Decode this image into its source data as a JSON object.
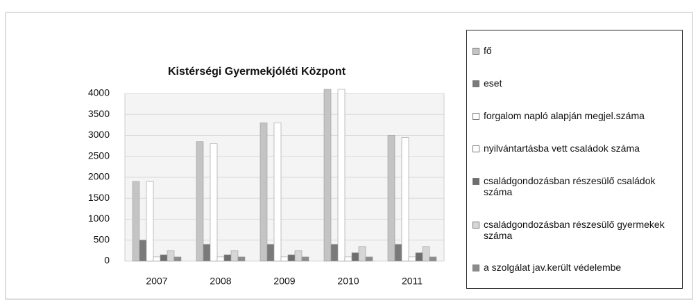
{
  "chart_data": {
    "type": "bar",
    "title": "Kistérségi Gyermekjóléti Központ",
    "categories": [
      "2007",
      "2008",
      "2009",
      "2010",
      "2011"
    ],
    "series": [
      {
        "name": "fő",
        "color": "#c4c4c4",
        "values": [
          1900,
          2850,
          3300,
          4100,
          3000
        ]
      },
      {
        "name": "eset",
        "color": "#7a7a7a",
        "values": [
          500,
          400,
          400,
          400,
          400
        ]
      },
      {
        "name": "forgalom napló alapján megjel.száma",
        "color": "#ffffff",
        "values": [
          1900,
          2800,
          3300,
          4100,
          2950
        ]
      },
      {
        "name": "nyilvántartásba vett családok száma",
        "color": "#ffffff",
        "values": [
          100,
          100,
          100,
          100,
          100
        ]
      },
      {
        "name": "családgondozásban részesülő családok száma",
        "color": "#6e6e6e",
        "values": [
          150,
          150,
          150,
          200,
          200
        ]
      },
      {
        "name": "családgondozásban részesülő gyermekek száma",
        "color": "#d6d6d6",
        "values": [
          250,
          250,
          250,
          350,
          350
        ]
      },
      {
        "name": "a szolgálat jav.került védelembe",
        "color": "#8c8c8c",
        "values": [
          100,
          100,
          100,
          100,
          100
        ]
      }
    ],
    "ylim": [
      0,
      4000
    ],
    "yticks": [
      0,
      500,
      1000,
      1500,
      2000,
      2500,
      3000,
      3500,
      4000
    ],
    "grid": true
  }
}
